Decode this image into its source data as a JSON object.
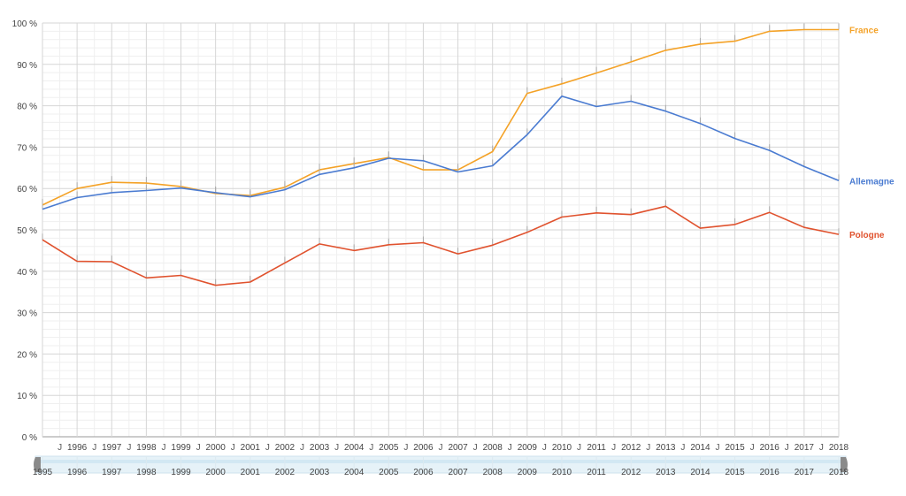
{
  "chart_data": {
    "type": "line",
    "x": [
      1995,
      1996,
      1997,
      1998,
      1999,
      2000,
      2001,
      2002,
      2003,
      2004,
      2005,
      2006,
      2007,
      2008,
      2009,
      2010,
      2011,
      2012,
      2013,
      2014,
      2015,
      2016,
      2017,
      2018
    ],
    "series": [
      {
        "name": "France",
        "color": "#f4a227",
        "values": [
          56.0,
          60.0,
          61.5,
          61.3,
          60.5,
          58.8,
          58.3,
          60.3,
          64.5,
          66.0,
          67.5,
          64.5,
          64.5,
          68.9,
          83.0,
          85.3,
          87.9,
          90.6,
          93.4,
          94.9,
          95.6,
          98.0,
          98.4,
          98.4
        ]
      },
      {
        "name": "Allemagne",
        "color": "#4a7bd1",
        "values": [
          55.0,
          57.8,
          59.0,
          59.5,
          60.1,
          59.0,
          58.0,
          59.7,
          63.4,
          65.0,
          67.3,
          66.7,
          64.0,
          65.5,
          73.0,
          82.3,
          79.8,
          81.1,
          78.7,
          75.7,
          72.1,
          69.2,
          65.3,
          61.9
        ]
      },
      {
        "name": "Pologne",
        "color": "#e0522e",
        "values": [
          47.6,
          42.4,
          42.3,
          38.4,
          39.0,
          36.6,
          37.4,
          42.0,
          46.6,
          45.0,
          46.4,
          46.9,
          44.2,
          46.3,
          49.4,
          53.1,
          54.1,
          53.7,
          55.7,
          50.4,
          51.3,
          54.2,
          50.6,
          48.9
        ]
      }
    ],
    "ylim": [
      0,
      100
    ],
    "y_ticks": [
      "0 %",
      "10 %",
      "20 %",
      "30 %",
      "40 %",
      "50 %",
      "60 %",
      "70 %",
      "80 %",
      "90 %",
      "100 %"
    ],
    "x_ticks": [
      "1996",
      "1997",
      "1998",
      "1999",
      "2000",
      "2001",
      "2002",
      "2003",
      "2004",
      "2005",
      "2006",
      "2007",
      "2008",
      "2009",
      "2010",
      "2011",
      "2012",
      "2013",
      "2014",
      "2015",
      "2016",
      "2017",
      "2018"
    ],
    "x_minor_label": "J",
    "navigator_ticks": [
      "1995",
      "1996",
      "1997",
      "1998",
      "1999",
      "2000",
      "2001",
      "2002",
      "2003",
      "2004",
      "2005",
      "2006",
      "2007",
      "2008",
      "2009",
      "2010",
      "2011",
      "2012",
      "2013",
      "2014",
      "2015",
      "2016",
      "2017",
      "2018"
    ],
    "grid": true,
    "legend": "right-end-labels"
  }
}
